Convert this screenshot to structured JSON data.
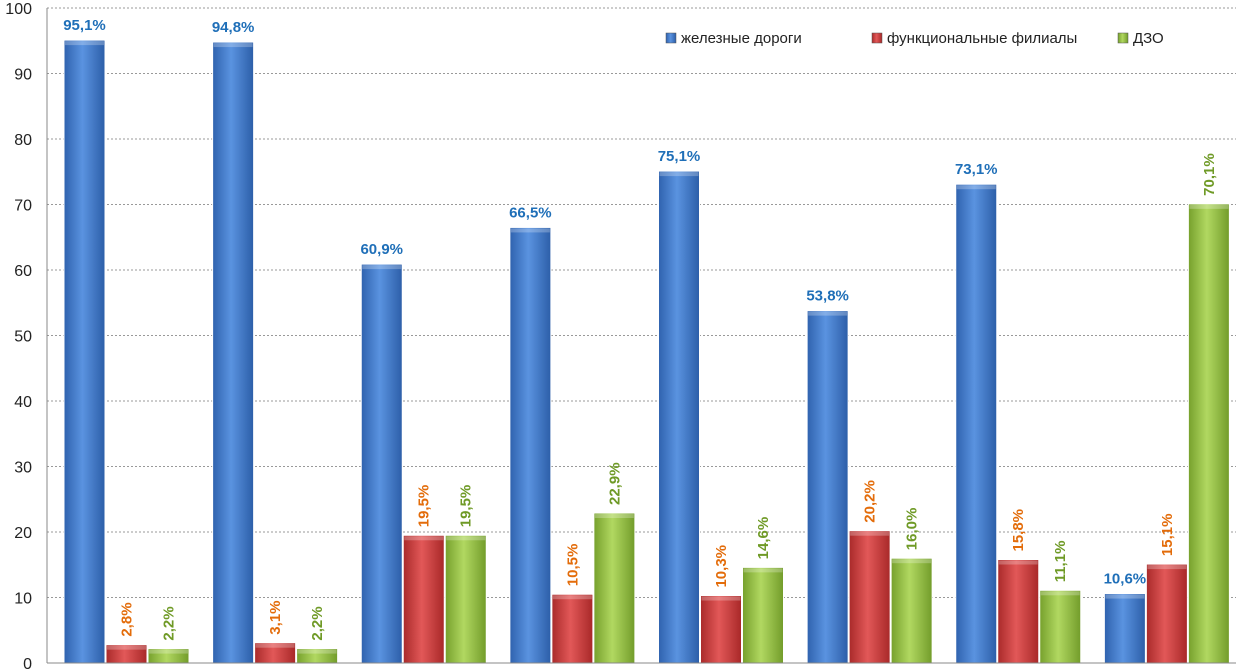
{
  "colors": {
    "series0": "#3a76cc",
    "series1": "#cc3a3a",
    "series2": "#8fbc3c",
    "label0": "#1f6fb8",
    "label1": "#e36c0a",
    "label2": "#6f9a26",
    "grid": "#999999",
    "axis": "#888888"
  },
  "chart_data": {
    "type": "bar",
    "title": "",
    "xlabel": "",
    "ylabel": "",
    "ylim": [
      0,
      100
    ],
    "yticks": [
      0,
      10,
      20,
      30,
      40,
      50,
      60,
      70,
      80,
      90,
      100
    ],
    "categories": [
      "",
      "",
      "",
      "",
      "",
      "",
      "",
      ""
    ],
    "legend_position": "top-right",
    "grid": true,
    "series": [
      {
        "name": "железные дороги",
        "values": [
          95.1,
          94.8,
          60.9,
          66.5,
          75.1,
          53.8,
          73.1,
          10.6
        ],
        "labels": [
          "95,1%",
          "94,8%",
          "60,9%",
          "66,5%",
          "75,1%",
          "53,8%",
          "73,1%",
          "10,6%"
        ],
        "label_orientation": "horizontal"
      },
      {
        "name": "функциональные филиалы",
        "values": [
          2.8,
          3.1,
          19.5,
          10.5,
          10.3,
          20.2,
          15.8,
          15.1
        ],
        "labels": [
          "2,8%",
          "3,1%",
          "19,5%",
          "10,5%",
          "10,3%",
          "20,2%",
          "15,8%",
          "15,1%"
        ],
        "label_orientation": "vertical"
      },
      {
        "name": "ДЗО",
        "values": [
          2.2,
          2.2,
          19.5,
          22.9,
          14.6,
          16.0,
          11.1,
          70.1
        ],
        "labels": [
          "2,2%",
          "2,2%",
          "19,5%",
          "22,9%",
          "14,6%",
          "16,0%",
          "11,1%",
          "70,1%"
        ],
        "label_orientation": "vertical"
      }
    ]
  }
}
